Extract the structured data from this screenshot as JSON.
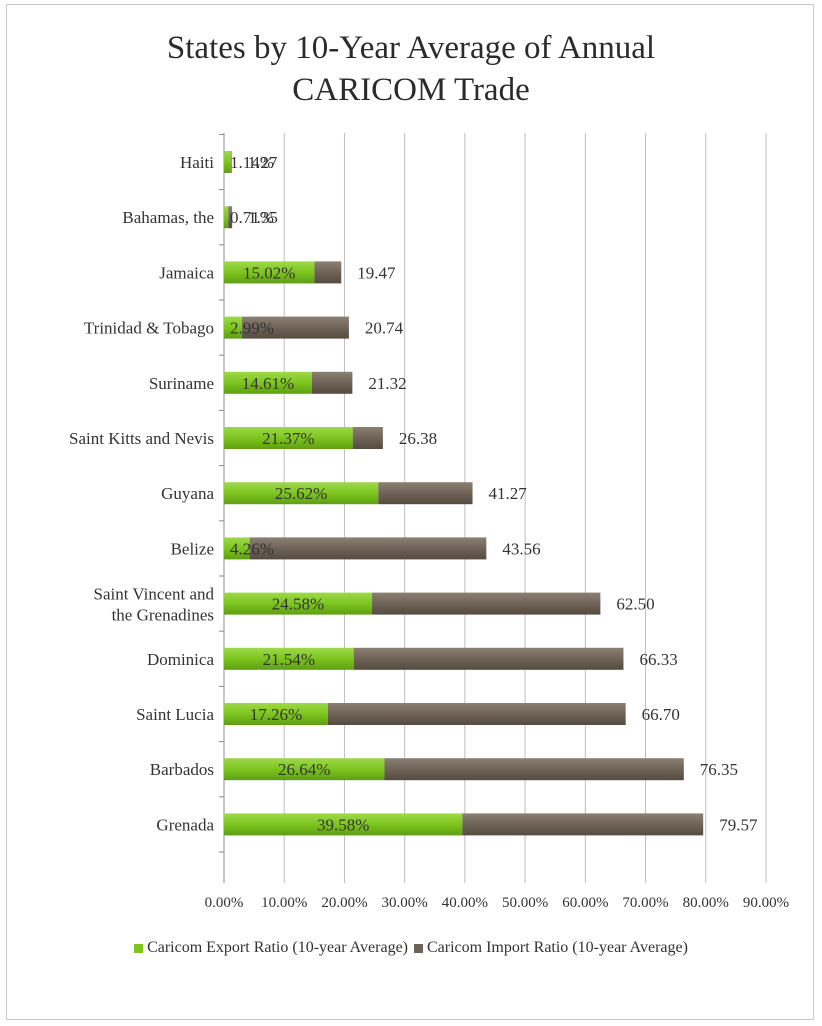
{
  "chart_data": {
    "type": "bar",
    "orientation": "horizontal",
    "stacked": true,
    "title": "States by 10-Year Average of Annual CARICOM Trade",
    "title_lines": [
      "States by 10-Year Average of Annual",
      "CARICOM Trade"
    ],
    "categories": [
      "Haiti",
      "Bahamas, the",
      "Jamaica",
      "Trinidad & Tobago",
      "Suriname",
      "Saint Kitts and Nevis",
      "Guyana",
      "Belize",
      "Saint Vincent and the Grenadines",
      "Dominica",
      "Saint Lucia",
      "Barbados",
      "Grenada"
    ],
    "series": [
      {
        "name": "Caricom Export Ratio (10-year Average)",
        "color": "#7dc51f",
        "values": [
          1.14,
          0.71,
          15.02,
          2.99,
          14.61,
          21.37,
          25.62,
          4.26,
          24.58,
          21.54,
          17.26,
          26.64,
          39.58
        ],
        "labels": [
          "1.14%",
          "0.71%",
          "15.02%",
          "2.99%",
          "14.61%",
          "21.37%",
          "25.62%",
          "4.26%",
          "24.58%",
          "21.54%",
          "17.26%",
          "26.64%",
          "39.58%"
        ]
      },
      {
        "name": "Caricom Import Ratio (10-year Average)",
        "color": "#6e6356",
        "values": [
          0.13,
          0.64,
          4.45,
          17.75,
          6.71,
          5.01,
          15.65,
          39.3,
          37.92,
          44.79,
          49.44,
          49.71,
          39.99
        ],
        "labels": [
          "1.27",
          "1.35",
          "19.47",
          "20.74",
          "21.32",
          "26.38",
          "41.27",
          "43.56",
          "62.50",
          "66.33",
          "66.70",
          "76.35",
          "79.57"
        ]
      }
    ],
    "xlim": [
      0,
      90
    ],
    "xticks": [
      "0.00%",
      "10.00%",
      "20.00%",
      "30.00%",
      "40.00%",
      "50.00%",
      "60.00%",
      "70.00%",
      "80.00%",
      "90.00%"
    ],
    "xlabel": "",
    "ylabel": "",
    "grid": true,
    "legend_position": "bottom"
  }
}
